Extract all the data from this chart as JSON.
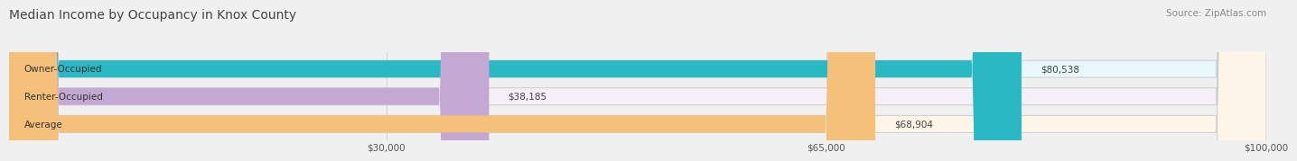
{
  "title": "Median Income by Occupancy in Knox County",
  "source": "Source: ZipAtlas.com",
  "categories": [
    "Owner-Occupied",
    "Renter-Occupied",
    "Average"
  ],
  "values": [
    80538,
    38185,
    68904
  ],
  "bar_colors": [
    "#2ab8c4",
    "#c4a8d4",
    "#f5c07a"
  ],
  "bar_bg_colors": [
    "#e8f8fa",
    "#f5f0f8",
    "#fdf5e8"
  ],
  "label_values": [
    "$80,538",
    "$38,185",
    "$68,904"
  ],
  "xlim": [
    0,
    100000
  ],
  "xticks": [
    30000,
    65000,
    100000
  ],
  "xtick_labels": [
    "$30,000",
    "$65,000",
    "$100,000"
  ],
  "title_fontsize": 10,
  "source_fontsize": 7.5,
  "bar_label_fontsize": 7.5,
  "cat_label_fontsize": 7.5,
  "background_color": "#f0f0f0"
}
